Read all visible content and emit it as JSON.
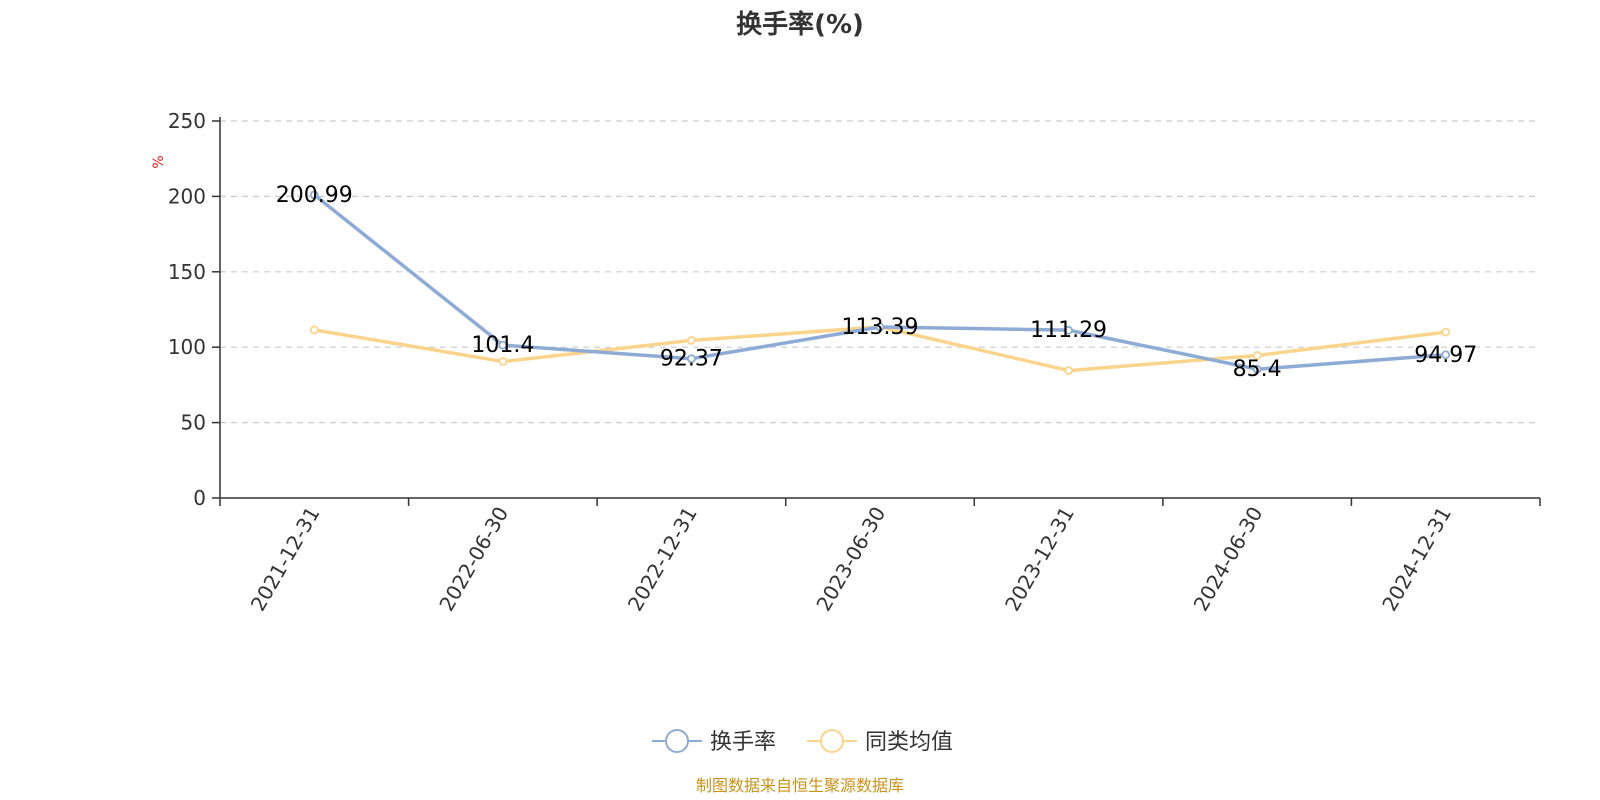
{
  "chart_data": {
    "type": "line",
    "title": "换手率(%)",
    "ylabel": "%",
    "xlabel": "",
    "categories": [
      "2021-12-31",
      "2022-06-30",
      "2022-12-31",
      "2023-06-30",
      "2023-12-31",
      "2024-06-30",
      "2024-12-31"
    ],
    "ylim": [
      0,
      250
    ],
    "yticks": [
      0,
      50,
      100,
      150,
      200,
      250
    ],
    "grid": true,
    "legend_position": "bottom",
    "series": [
      {
        "name": "换手率",
        "values": [
          200.99,
          101.4,
          92.37,
          113.39,
          111.29,
          85.4,
          94.97
        ],
        "labels": [
          "200.99",
          "101.4",
          "92.37",
          "113.39",
          "111.29",
          "85.4",
          "94.97"
        ],
        "color": "#8eabd6"
      },
      {
        "name": "同类均值",
        "values": [
          111.5,
          90.5,
          104.5,
          113.5,
          84.5,
          94.5,
          110
        ],
        "color": "#fad48d"
      }
    ]
  },
  "source_note": "制图数据来自恒生聚源数据库"
}
